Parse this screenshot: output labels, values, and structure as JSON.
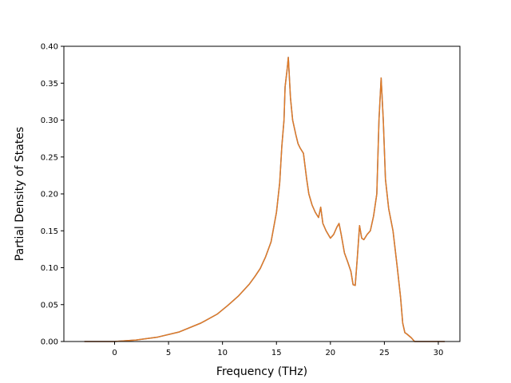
{
  "chart_data": {
    "type": "line",
    "title": "",
    "xlabel": "Frequency (THz)",
    "ylabel": "Partial Density of States",
    "xlim": [
      -4.7,
      32.0
    ],
    "ylim": [
      0.0,
      0.4
    ],
    "xticks": [
      0,
      5,
      10,
      15,
      20,
      25,
      30
    ],
    "xtick_labels": [
      "0",
      "5",
      "10",
      "15",
      "20",
      "25",
      "30"
    ],
    "yticks": [
      0.0,
      0.05,
      0.1,
      0.15,
      0.2,
      0.25,
      0.3,
      0.35,
      0.4
    ],
    "ytick_labels": [
      "0.00",
      "0.05",
      "0.10",
      "0.15",
      "0.20",
      "0.25",
      "0.30",
      "0.35",
      "0.40"
    ],
    "grid": false,
    "legend": "none",
    "series": [
      {
        "color": "#e07b27",
        "under_color": "#4c72b0",
        "x": [
          -2.8,
          0.0,
          2.0,
          4.0,
          6.0,
          8.0,
          9.5,
          10.5,
          11.5,
          12.5,
          13.0,
          13.5,
          14.0,
          14.5,
          15.0,
          15.3,
          15.5,
          15.7,
          15.8,
          16.0,
          16.1,
          16.3,
          16.5,
          16.8,
          17.0,
          17.2,
          17.5,
          17.8,
          18.0,
          18.3,
          18.6,
          18.9,
          19.1,
          19.3,
          19.6,
          20.0,
          20.3,
          20.6,
          20.8,
          21.0,
          21.3,
          21.6,
          21.9,
          22.1,
          22.3,
          22.5,
          22.7,
          22.9,
          23.1,
          23.4,
          23.7,
          24.0,
          24.3,
          24.5,
          24.7,
          24.9,
          25.1,
          25.4,
          25.8,
          26.2,
          26.5,
          26.7,
          26.9,
          27.1,
          27.5,
          27.8,
          28.2,
          30.6
        ],
        "values": [
          0.0,
          0.0,
          0.002,
          0.006,
          0.013,
          0.025,
          0.037,
          0.049,
          0.062,
          0.078,
          0.088,
          0.099,
          0.115,
          0.135,
          0.175,
          0.215,
          0.265,
          0.3,
          0.345,
          0.37,
          0.385,
          0.33,
          0.3,
          0.28,
          0.268,
          0.262,
          0.255,
          0.22,
          0.2,
          0.185,
          0.175,
          0.168,
          0.182,
          0.16,
          0.15,
          0.14,
          0.145,
          0.155,
          0.16,
          0.145,
          0.12,
          0.108,
          0.095,
          0.077,
          0.076,
          0.115,
          0.157,
          0.14,
          0.138,
          0.145,
          0.15,
          0.17,
          0.2,
          0.3,
          0.357,
          0.3,
          0.22,
          0.18,
          0.15,
          0.1,
          0.06,
          0.025,
          0.012,
          0.01,
          0.005,
          0.0,
          0.0,
          0.0
        ]
      }
    ]
  }
}
